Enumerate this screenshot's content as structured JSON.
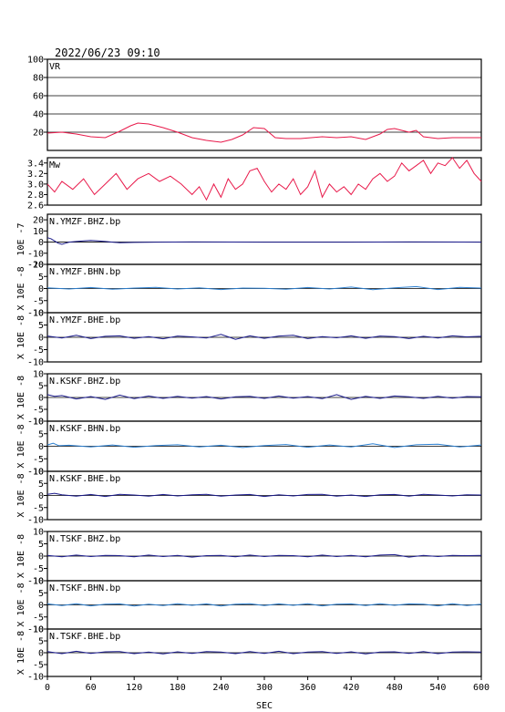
{
  "chart_data": {
    "type": "line",
    "title": "2022/06/23 09:10",
    "xlabel": "SEC",
    "xlim": [
      0,
      600
    ],
    "xticks": [
      "0",
      "60",
      "120",
      "180",
      "240",
      "300",
      "360",
      "420",
      "480",
      "540",
      "600"
    ],
    "panels": [
      {
        "label": "VR",
        "ylim": [
          0,
          100
        ],
        "yticks": [
          {
            "v": 20,
            "t": "20"
          },
          {
            "v": 40,
            "t": "40"
          },
          {
            "v": 60,
            "t": "60"
          },
          {
            "v": 80,
            "t": "80"
          },
          {
            "v": 100,
            "t": "100"
          }
        ],
        "grid": [
          20,
          40,
          60,
          80
        ],
        "color": "#e8194a",
        "series": {
          "x": [
            0,
            20,
            40,
            60,
            80,
            100,
            115,
            125,
            140,
            160,
            180,
            200,
            220,
            240,
            255,
            270,
            285,
            300,
            315,
            330,
            350,
            380,
            400,
            420,
            440,
            460,
            470,
            480,
            490,
            500,
            510,
            520,
            540,
            560,
            580,
            600
          ],
          "y": [
            19,
            20,
            18,
            15,
            14,
            21,
            27,
            30,
            29,
            25,
            20,
            14,
            11,
            9,
            12,
            17,
            25,
            24,
            14,
            13,
            13,
            15,
            14,
            15,
            12,
            18,
            23,
            24,
            22,
            20,
            22,
            15,
            13,
            14,
            14,
            14
          ]
        }
      },
      {
        "label": "Mw",
        "ylim": [
          2.6,
          3.5
        ],
        "yticks": [
          {
            "v": 2.6,
            "t": "2.6"
          },
          {
            "v": 2.8,
            "t": "2.8"
          },
          {
            "v": 3.0,
            "t": "3.0"
          },
          {
            "v": 3.2,
            "t": "3.2"
          },
          {
            "v": 3.4,
            "t": "3.4"
          }
        ],
        "grid": [],
        "color": "#e8194a",
        "series": {
          "x": [
            0,
            10,
            20,
            35,
            50,
            65,
            80,
            95,
            110,
            125,
            140,
            155,
            170,
            185,
            200,
            210,
            220,
            230,
            240,
            250,
            260,
            270,
            280,
            290,
            300,
            310,
            320,
            330,
            340,
            350,
            360,
            370,
            380,
            390,
            400,
            410,
            420,
            430,
            440,
            450,
            460,
            470,
            480,
            490,
            500,
            510,
            520,
            530,
            540,
            550,
            560,
            570,
            580,
            590,
            600
          ],
          "y": [
            3.0,
            2.85,
            3.05,
            2.9,
            3.1,
            2.8,
            3.0,
            3.2,
            2.9,
            3.1,
            3.2,
            3.05,
            3.15,
            3.0,
            2.8,
            2.95,
            2.7,
            3.0,
            2.75,
            3.1,
            2.9,
            3.0,
            3.25,
            3.3,
            3.05,
            2.85,
            3.0,
            2.9,
            3.1,
            2.8,
            2.95,
            3.25,
            2.75,
            3.0,
            2.85,
            2.95,
            2.8,
            3.0,
            2.9,
            3.1,
            3.2,
            3.05,
            3.15,
            3.4,
            3.25,
            3.35,
            3.45,
            3.2,
            3.4,
            3.35,
            3.5,
            3.3,
            3.45,
            3.2,
            3.05
          ]
        }
      },
      {
        "label": "N.YMZF.BHZ.bp",
        "ylim": [
          -20,
          25
        ],
        "yticks": [
          {
            "v": -20,
            "t": "-20"
          },
          {
            "v": -10,
            "t": "-10"
          },
          {
            "v": 0,
            "t": "0"
          },
          {
            "v": 10,
            "t": "10"
          },
          {
            "v": 20,
            "t": "20"
          }
        ],
        "axis_label": "10E -7",
        "color": "#1a1a8c",
        "series": {
          "x": [
            0,
            5,
            10,
            15,
            20,
            25,
            30,
            40,
            50,
            60,
            70,
            80,
            90,
            100,
            120,
            150,
            200,
            300,
            400,
            500,
            600
          ],
          "y": [
            4,
            3,
            1,
            -1,
            -2,
            -1,
            0,
            0.5,
            1,
            1.5,
            1,
            0.5,
            0,
            -0.5,
            -0.3,
            0,
            0.1,
            0,
            0,
            0.1,
            0
          ]
        }
      },
      {
        "label": "N.YMZF.BHN.bp",
        "ylim": [
          -10,
          10
        ],
        "yticks": [
          {
            "v": -10,
            "t": "-10"
          },
          {
            "v": -5,
            "t": "-5"
          },
          {
            "v": 0,
            "t": "0"
          },
          {
            "v": 5,
            "t": "5"
          },
          {
            "v": 10,
            "t": "10"
          }
        ],
        "axis_label": "X 10E -8",
        "color": "#2b7fd0",
        "series": {
          "x": [
            0,
            30,
            60,
            90,
            120,
            150,
            180,
            210,
            240,
            270,
            300,
            330,
            360,
            390,
            420,
            450,
            480,
            510,
            540,
            570,
            600
          ],
          "y": [
            0.3,
            -0.2,
            0.4,
            -0.3,
            0.2,
            0.5,
            -0.2,
            0.3,
            -0.4,
            0.2,
            0.1,
            -0.3,
            0.4,
            -0.2,
            0.6,
            -0.5,
            0.3,
            0.8,
            -0.4,
            0.5,
            0.2
          ]
        }
      },
      {
        "label": "N.YMZF.BHE.bp",
        "ylim": [
          -10,
          10
        ],
        "yticks": [
          {
            "v": -10,
            "t": "-10"
          },
          {
            "v": -5,
            "t": "-5"
          },
          {
            "v": 0,
            "t": "0"
          },
          {
            "v": 5,
            "t": "5"
          },
          {
            "v": 10,
            "t": "10"
          }
        ],
        "axis_label": "X 10E -8",
        "color": "#1a1a8c",
        "series": {
          "x": [
            0,
            20,
            40,
            60,
            80,
            100,
            120,
            140,
            160,
            180,
            200,
            220,
            240,
            260,
            280,
            300,
            320,
            340,
            360,
            380,
            400,
            420,
            440,
            460,
            480,
            500,
            520,
            540,
            560,
            580,
            600
          ],
          "y": [
            0.5,
            -0.3,
            0.8,
            -0.5,
            0.4,
            0.6,
            -0.4,
            0.3,
            -0.6,
            0.5,
            0.2,
            -0.3,
            1.2,
            -0.8,
            0.6,
            -0.4,
            0.5,
            0.8,
            -0.5,
            0.3,
            -0.2,
            0.6,
            -0.4,
            0.5,
            0.3,
            -0.5,
            0.4,
            -0.3,
            0.6,
            0.2,
            0.4
          ]
        }
      },
      {
        "label": "N.KSKF.BHZ.bp",
        "ylim": [
          -10,
          10
        ],
        "yticks": [
          {
            "v": -10,
            "t": "-10"
          },
          {
            "v": -5,
            "t": "-5"
          },
          {
            "v": 0,
            "t": "0"
          },
          {
            "v": 5,
            "t": "5"
          },
          {
            "v": 10,
            "t": "10"
          }
        ],
        "axis_label": "X 10E -8",
        "color": "#1a1a8c",
        "series": {
          "x": [
            0,
            10,
            20,
            40,
            60,
            80,
            100,
            120,
            140,
            160,
            180,
            200,
            220,
            240,
            260,
            280,
            300,
            320,
            340,
            360,
            380,
            400,
            420,
            440,
            460,
            480,
            500,
            520,
            540,
            560,
            580,
            600
          ],
          "y": [
            1.2,
            0.5,
            0.8,
            -0.6,
            0.4,
            -0.8,
            1.0,
            -0.5,
            0.6,
            -0.4,
            0.5,
            -0.3,
            0.4,
            -0.6,
            0.3,
            0.5,
            -0.4,
            0.6,
            -0.3,
            0.4,
            -0.5,
            1.2,
            -0.8,
            0.5,
            -0.4,
            0.6,
            0.3,
            -0.4,
            0.5,
            -0.3,
            0.4,
            0.3
          ]
        }
      },
      {
        "label": "N.KSKF.BHN.bp",
        "ylim": [
          -10,
          10
        ],
        "yticks": [
          {
            "v": -10,
            "t": "-10"
          },
          {
            "v": -5,
            "t": "-5"
          },
          {
            "v": 0,
            "t": "0"
          },
          {
            "v": 5,
            "t": "5"
          },
          {
            "v": 10,
            "t": "10"
          }
        ],
        "axis_label": "X 10E -8",
        "color": "#2b7fd0",
        "series": {
          "x": [
            0,
            8,
            16,
            30,
            60,
            90,
            120,
            150,
            180,
            210,
            240,
            270,
            300,
            330,
            360,
            390,
            420,
            450,
            480,
            510,
            540,
            570,
            600
          ],
          "y": [
            0.5,
            1.2,
            0.2,
            0.4,
            -0.3,
            0.5,
            -0.4,
            0.3,
            0.6,
            -0.3,
            0.4,
            -0.5,
            0.3,
            0.7,
            -0.4,
            0.5,
            -0.3,
            1.0,
            -0.5,
            0.6,
            0.8,
            -0.3,
            0.5
          ]
        }
      },
      {
        "label": "N.KSKF.BHE.bp",
        "ylim": [
          -10,
          10
        ],
        "yticks": [
          {
            "v": -10,
            "t": "-10"
          },
          {
            "v": -5,
            "t": "-5"
          },
          {
            "v": 0,
            "t": "0"
          },
          {
            "v": 5,
            "t": "5"
          },
          {
            "v": 10,
            "t": "10"
          }
        ],
        "axis_label": "X 10E -8",
        "color": "#1a1a8c",
        "series": {
          "x": [
            0,
            10,
            20,
            40,
            60,
            80,
            100,
            120,
            140,
            160,
            180,
            200,
            220,
            240,
            260,
            280,
            300,
            320,
            340,
            360,
            380,
            400,
            420,
            440,
            460,
            480,
            500,
            520,
            540,
            560,
            580,
            600
          ],
          "y": [
            0.5,
            0.9,
            0.3,
            -0.3,
            0.4,
            -0.4,
            0.5,
            0.2,
            -0.3,
            0.4,
            -0.2,
            0.3,
            0.5,
            -0.3,
            0.2,
            0.4,
            -0.4,
            0.3,
            -0.2,
            0.4,
            0.5,
            -0.3,
            0.2,
            -0.4,
            0.3,
            0.4,
            -0.3,
            0.5,
            0.2,
            -0.2,
            0.3,
            0.2
          ]
        }
      },
      {
        "label": "N.TSKF.BHZ.bp",
        "ylim": [
          -10,
          10
        ],
        "yticks": [
          {
            "v": -10,
            "t": "-10"
          },
          {
            "v": -5,
            "t": "-5"
          },
          {
            "v": 0,
            "t": "0"
          },
          {
            "v": 5,
            "t": "5"
          },
          {
            "v": 10,
            "t": "10"
          }
        ],
        "axis_label": "X 10E -8",
        "color": "#1a1a8c",
        "series": {
          "x": [
            0,
            20,
            40,
            60,
            80,
            100,
            120,
            140,
            160,
            180,
            200,
            220,
            240,
            260,
            280,
            300,
            320,
            340,
            360,
            380,
            400,
            420,
            440,
            460,
            480,
            500,
            520,
            540,
            560,
            580,
            600
          ],
          "y": [
            0.3,
            -0.3,
            0.4,
            -0.2,
            0.3,
            0.2,
            -0.3,
            0.4,
            -0.2,
            0.3,
            -0.4,
            0.2,
            0.3,
            -0.3,
            0.4,
            -0.2,
            0.3,
            0.2,
            -0.3,
            0.4,
            -0.2,
            0.3,
            -0.3,
            0.4,
            0.6,
            -0.4,
            0.3,
            -0.2,
            0.3,
            0.2,
            0.3
          ]
        }
      },
      {
        "label": "N.TSKF.BHN.bp",
        "ylim": [
          -10,
          10
        ],
        "yticks": [
          {
            "v": -10,
            "t": "-10"
          },
          {
            "v": -5,
            "t": "-5"
          },
          {
            "v": 0,
            "t": "0"
          },
          {
            "v": 5,
            "t": "5"
          },
          {
            "v": 10,
            "t": "10"
          }
        ],
        "axis_label": "X 10E -8",
        "color": "#2b7fd0",
        "series": {
          "x": [
            0,
            20,
            40,
            60,
            80,
            100,
            120,
            140,
            160,
            180,
            200,
            220,
            240,
            260,
            280,
            300,
            320,
            340,
            360,
            380,
            400,
            420,
            440,
            460,
            480,
            500,
            520,
            540,
            560,
            580,
            600
          ],
          "y": [
            0.4,
            -0.3,
            0.5,
            -0.4,
            0.3,
            0.4,
            -0.5,
            0.3,
            -0.3,
            0.5,
            -0.2,
            0.4,
            -0.5,
            0.3,
            0.5,
            -0.3,
            0.4,
            -0.2,
            0.5,
            -0.4,
            0.3,
            0.4,
            -0.3,
            0.5,
            -0.2,
            0.4,
            0.3,
            -0.4,
            0.5,
            -0.3,
            0.3
          ]
        }
      },
      {
        "label": "N.TSKF.BHE.bp",
        "ylim": [
          -10,
          10
        ],
        "yticks": [
          {
            "v": -10,
            "t": "-10"
          },
          {
            "v": -5,
            "t": "-5"
          },
          {
            "v": 0,
            "t": "0"
          },
          {
            "v": 5,
            "t": "5"
          },
          {
            "v": 10,
            "t": "10"
          }
        ],
        "axis_label": "X 10E -8",
        "color": "#1a1a8c",
        "series": {
          "x": [
            0,
            20,
            40,
            60,
            80,
            100,
            120,
            140,
            160,
            180,
            200,
            220,
            240,
            260,
            280,
            300,
            320,
            340,
            360,
            380,
            400,
            420,
            440,
            460,
            480,
            500,
            520,
            540,
            560,
            580,
            600
          ],
          "y": [
            0.5,
            -0.4,
            0.6,
            -0.3,
            0.4,
            0.5,
            -0.4,
            0.3,
            -0.5,
            0.4,
            -0.3,
            0.5,
            0.3,
            -0.4,
            0.5,
            -0.3,
            0.6,
            -0.4,
            0.3,
            0.5,
            -0.3,
            0.4,
            -0.5,
            0.3,
            0.4,
            -0.3,
            0.5,
            -0.4,
            0.3,
            0.4,
            0.3
          ]
        }
      }
    ]
  }
}
